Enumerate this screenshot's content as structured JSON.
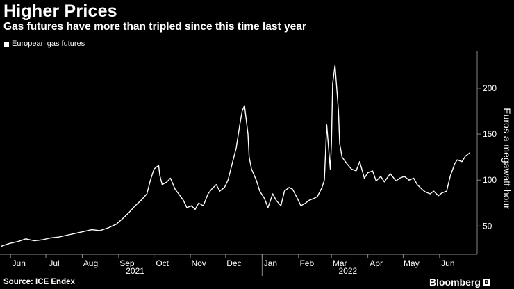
{
  "header": {
    "title": "Higher Prices",
    "subtitle": "Gas futures have more than tripled since this time last year"
  },
  "footer": {
    "source": "Source: ICE Endex",
    "brand": "Bloomberg"
  },
  "colors": {
    "background": "#000000",
    "line": "#ffffff"
  },
  "chart_data": {
    "type": "line",
    "title": "Higher Prices",
    "subtitle": "Gas futures have more than tripled since this time last year",
    "ylabel": "Euros a megawatt-hour",
    "xlabel": "",
    "ylim": [
      20,
      240
    ],
    "xlim": [
      "2021-05-23",
      "2022-07-03"
    ],
    "yticks": [
      50,
      100,
      150,
      200
    ],
    "grid": false,
    "legend_position": "top-left",
    "x_ticks": [
      {
        "label": "Jun",
        "date": "2021-06-01"
      },
      {
        "label": "Jul",
        "date": "2021-07-01"
      },
      {
        "label": "Aug",
        "date": "2021-08-01"
      },
      {
        "label": "Sep",
        "date": "2021-09-01"
      },
      {
        "label": "Oct",
        "date": "2021-10-01"
      },
      {
        "label": "Nov",
        "date": "2021-11-01"
      },
      {
        "label": "Dec",
        "date": "2021-12-01"
      },
      {
        "label": "Jan",
        "date": "2022-01-01"
      },
      {
        "label": "Feb",
        "date": "2022-02-01"
      },
      {
        "label": "Mar",
        "date": "2022-03-01"
      },
      {
        "label": "Apr",
        "date": "2022-04-01"
      },
      {
        "label": "May",
        "date": "2022-05-01"
      },
      {
        "label": "Jun",
        "date": "2022-06-01"
      }
    ],
    "year_labels": [
      {
        "label": "2021",
        "date": "2021-09-15"
      },
      {
        "label": "2022",
        "date": "2022-03-15"
      }
    ],
    "series": [
      {
        "name": "European gas futures",
        "x": [
          "2021-05-24",
          "2021-05-31",
          "2021-06-07",
          "2021-06-14",
          "2021-06-21",
          "2021-06-28",
          "2021-07-05",
          "2021-07-12",
          "2021-07-19",
          "2021-07-26",
          "2021-08-02",
          "2021-08-09",
          "2021-08-16",
          "2021-08-23",
          "2021-08-30",
          "2021-09-06",
          "2021-09-10",
          "2021-09-15",
          "2021-09-20",
          "2021-09-25",
          "2021-09-28",
          "2021-10-01",
          "2021-10-05",
          "2021-10-06",
          "2021-10-08",
          "2021-10-12",
          "2021-10-15",
          "2021-10-19",
          "2021-10-22",
          "2021-10-26",
          "2021-10-29",
          "2021-11-02",
          "2021-11-05",
          "2021-11-08",
          "2021-11-12",
          "2021-11-16",
          "2021-11-19",
          "2021-11-23",
          "2021-11-26",
          "2021-11-30",
          "2021-12-03",
          "2021-12-07",
          "2021-12-10",
          "2021-12-13",
          "2021-12-15",
          "2021-12-17",
          "2021-12-20",
          "2021-12-21",
          "2021-12-23",
          "2021-12-27",
          "2021-12-30",
          "2022-01-03",
          "2022-01-06",
          "2022-01-10",
          "2022-01-13",
          "2022-01-17",
          "2022-01-20",
          "2022-01-24",
          "2022-01-27",
          "2022-01-31",
          "2022-02-03",
          "2022-02-07",
          "2022-02-10",
          "2022-02-14",
          "2022-02-17",
          "2022-02-21",
          "2022-02-23",
          "2022-02-24",
          "2022-02-25",
          "2022-02-28",
          "2022-03-01",
          "2022-03-02",
          "2022-03-04",
          "2022-03-07",
          "2022-03-08",
          "2022-03-10",
          "2022-03-14",
          "2022-03-18",
          "2022-03-22",
          "2022-03-25",
          "2022-03-29",
          "2022-04-01",
          "2022-04-05",
          "2022-04-08",
          "2022-04-12",
          "2022-04-15",
          "2022-04-20",
          "2022-04-25",
          "2022-04-28",
          "2022-05-02",
          "2022-05-06",
          "2022-05-10",
          "2022-05-13",
          "2022-05-17",
          "2022-05-20",
          "2022-05-24",
          "2022-05-27",
          "2022-05-31",
          "2022-06-03",
          "2022-06-07",
          "2022-06-10",
          "2022-06-14",
          "2022-06-16",
          "2022-06-20",
          "2022-06-23",
          "2022-06-27"
        ],
        "values": [
          28,
          31,
          33,
          36,
          34,
          35,
          37,
          38,
          40,
          42,
          44,
          46,
          45,
          48,
          52,
          60,
          65,
          72,
          78,
          85,
          100,
          112,
          116,
          105,
          95,
          98,
          102,
          90,
          85,
          78,
          70,
          72,
          68,
          75,
          72,
          85,
          90,
          95,
          88,
          92,
          100,
          120,
          135,
          160,
          175,
          181,
          150,
          125,
          112,
          100,
          88,
          80,
          70,
          85,
          78,
          72,
          88,
          92,
          90,
          80,
          72,
          75,
          78,
          80,
          82,
          92,
          100,
          130,
          160,
          112,
          140,
          205,
          225,
          175,
          140,
          125,
          118,
          112,
          110,
          120,
          102,
          108,
          110,
          99,
          104,
          98,
          107,
          99,
          102,
          104,
          100,
          102,
          95,
          90,
          87,
          85,
          88,
          83,
          86,
          88,
          104,
          118,
          122,
          120,
          126,
          130
        ]
      }
    ]
  }
}
